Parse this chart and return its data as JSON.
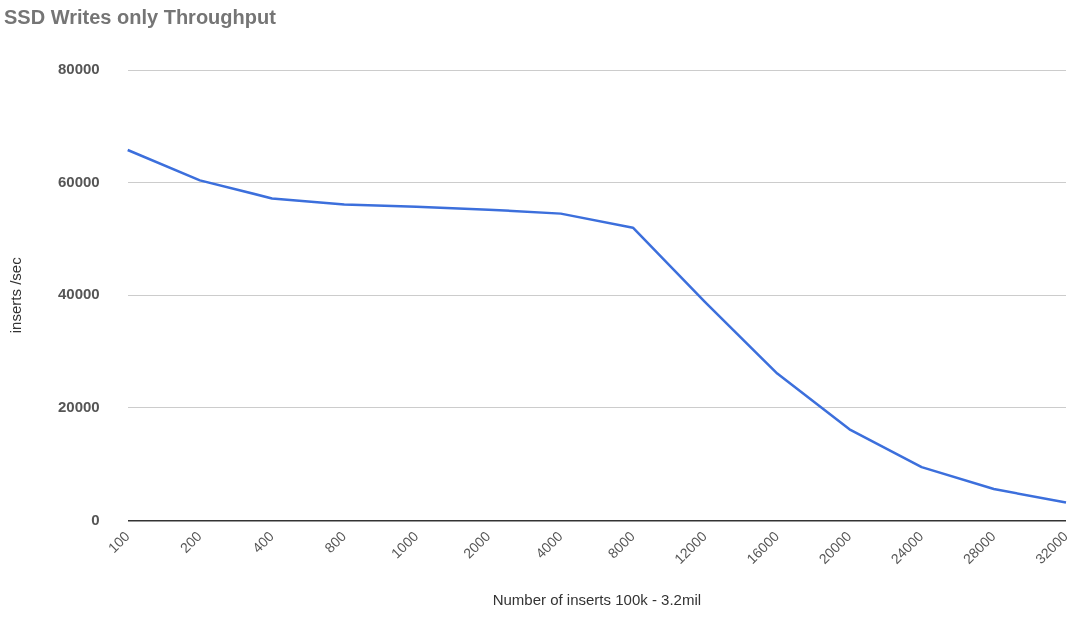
{
  "chart_data": {
    "type": "line",
    "title": "SSD Writes only Throughput",
    "xlabel": "Number of inserts 100k - 3.2mil",
    "ylabel": "inserts /sec",
    "categories": [
      "100",
      "200",
      "400",
      "800",
      "1000",
      "2000",
      "4000",
      "8000",
      "12000",
      "16000",
      "20000",
      "24000",
      "28000",
      "32000"
    ],
    "series": [
      {
        "color": "#3c6fdc",
        "values": [
          65800,
          60400,
          57200,
          56100,
          55700,
          55200,
          54500,
          52000,
          38800,
          26100,
          16200,
          9500,
          5600,
          3200
        ]
      }
    ],
    "ylim": [
      0,
      80000
    ],
    "yticks": [
      0,
      20000,
      40000,
      60000,
      80000
    ],
    "grid": "y",
    "legend": false
  }
}
